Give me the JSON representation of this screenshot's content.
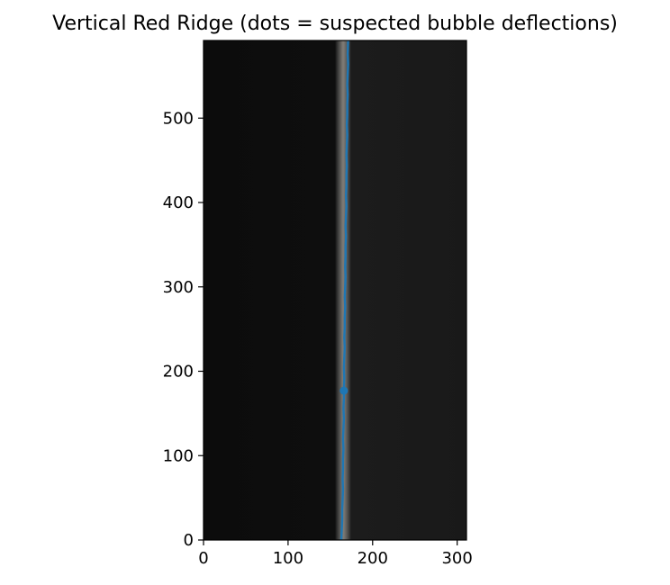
{
  "chart_data": {
    "type": "scatter",
    "title": "Vertical Red Ridge (dots = suspected bubble deflections)",
    "xlabel": "",
    "ylabel": "",
    "xlim": [
      0,
      311
    ],
    "ylim": [
      0,
      592
    ],
    "x_ticks": [
      0,
      100,
      200,
      300
    ],
    "y_ticks": [
      0,
      100,
      200,
      300,
      400,
      500
    ],
    "background": "dark grayscale image, brighter on the right side",
    "ridge_line": {
      "color": "#1f77b4",
      "x": [
        163,
        163.5,
        164,
        164,
        164.5,
        165,
        164.5,
        165,
        165,
        165.5,
        165,
        165.5,
        166,
        165.5,
        166,
        166,
        166.5,
        166,
        166.5,
        167,
        166.5,
        167,
        167,
        167.5,
        167,
        167.5,
        168,
        167.5,
        168,
        168,
        168.5,
        168,
        168.5,
        169,
        168.5,
        169,
        169,
        169.5,
        169,
        169.5,
        170,
        169.5,
        170,
        170,
        170.5,
        170,
        170.5,
        171,
        170.5,
        171
      ],
      "y": [
        0,
        12,
        24,
        36,
        48,
        60,
        72,
        84,
        96,
        108,
        120,
        132,
        144,
        156,
        168,
        180,
        192,
        204,
        216,
        228,
        240,
        252,
        264,
        276,
        288,
        300,
        312,
        324,
        336,
        348,
        360,
        372,
        384,
        396,
        408,
        420,
        432,
        444,
        456,
        468,
        480,
        492,
        504,
        516,
        528,
        540,
        552,
        564,
        576,
        592
      ]
    },
    "dots": {
      "color": "#1f77b4",
      "x": [
        166
      ],
      "y": [
        177
      ]
    },
    "grid": false,
    "legend": "none"
  }
}
